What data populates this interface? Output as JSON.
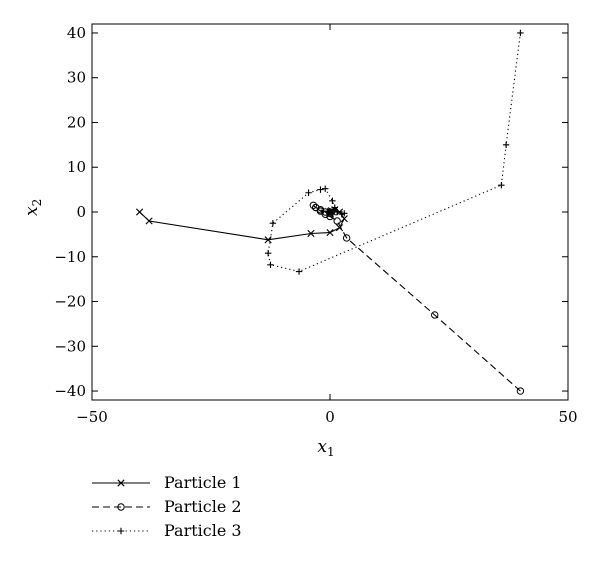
{
  "chart_data": {
    "type": "line",
    "title": "",
    "xlabel": "x",
    "xlabel_sub": "1",
    "ylabel": "x",
    "ylabel_sub": "2",
    "xlim": [
      -50,
      50
    ],
    "ylim": [
      -42,
      42
    ],
    "xticks": [
      -50,
      0,
      50
    ],
    "yticks": [
      -40,
      -30,
      -20,
      -10,
      0,
      10,
      20,
      30,
      40
    ],
    "grid": false,
    "legend_position": "below-left",
    "series": [
      {
        "name": "Particle 1",
        "marker": "x",
        "line": "solid",
        "points": [
          [
            -40,
            0
          ],
          [
            -38,
            -2
          ],
          [
            -13,
            -6.2
          ],
          [
            -4,
            -4.8
          ],
          [
            0,
            -4.6
          ],
          [
            2,
            -3.5
          ],
          [
            3,
            -1.5
          ],
          [
            2,
            0
          ],
          [
            1,
            0.5
          ],
          [
            0.5,
            0
          ],
          [
            0,
            -0.5
          ],
          [
            0.3,
            0.3
          ],
          [
            0.1,
            0.1
          ],
          [
            0,
            0
          ]
        ]
      },
      {
        "name": "Particle 2",
        "marker": "o",
        "line": "dashed",
        "points": [
          [
            40,
            -40
          ],
          [
            22,
            -23
          ],
          [
            3.5,
            -5.8
          ],
          [
            1.5,
            -2
          ],
          [
            0,
            -1
          ],
          [
            -1,
            0
          ],
          [
            -2,
            0.5
          ],
          [
            -3,
            1
          ],
          [
            -3.5,
            1.5
          ],
          [
            -3,
            1
          ],
          [
            -2,
            0.2
          ],
          [
            -1,
            -0.5
          ],
          [
            0,
            -0.3
          ],
          [
            0,
            0
          ]
        ]
      },
      {
        "name": "Particle 3",
        "marker": "+",
        "line": "dotted",
        "points": [
          [
            40,
            40
          ],
          [
            37,
            15
          ],
          [
            36,
            6
          ],
          [
            -6.5,
            -13.3
          ],
          [
            -12.5,
            -11.8
          ],
          [
            -13,
            -9.2
          ],
          [
            -12,
            -2.5
          ],
          [
            -4.5,
            4.3
          ],
          [
            -2,
            5
          ],
          [
            -1,
            5.2
          ],
          [
            0.5,
            2.5
          ],
          [
            1,
            1
          ],
          [
            1.5,
            0
          ],
          [
            2.5,
            -0.5
          ],
          [
            3,
            -0.3
          ],
          [
            1,
            0.5
          ],
          [
            0,
            0
          ]
        ]
      }
    ]
  }
}
